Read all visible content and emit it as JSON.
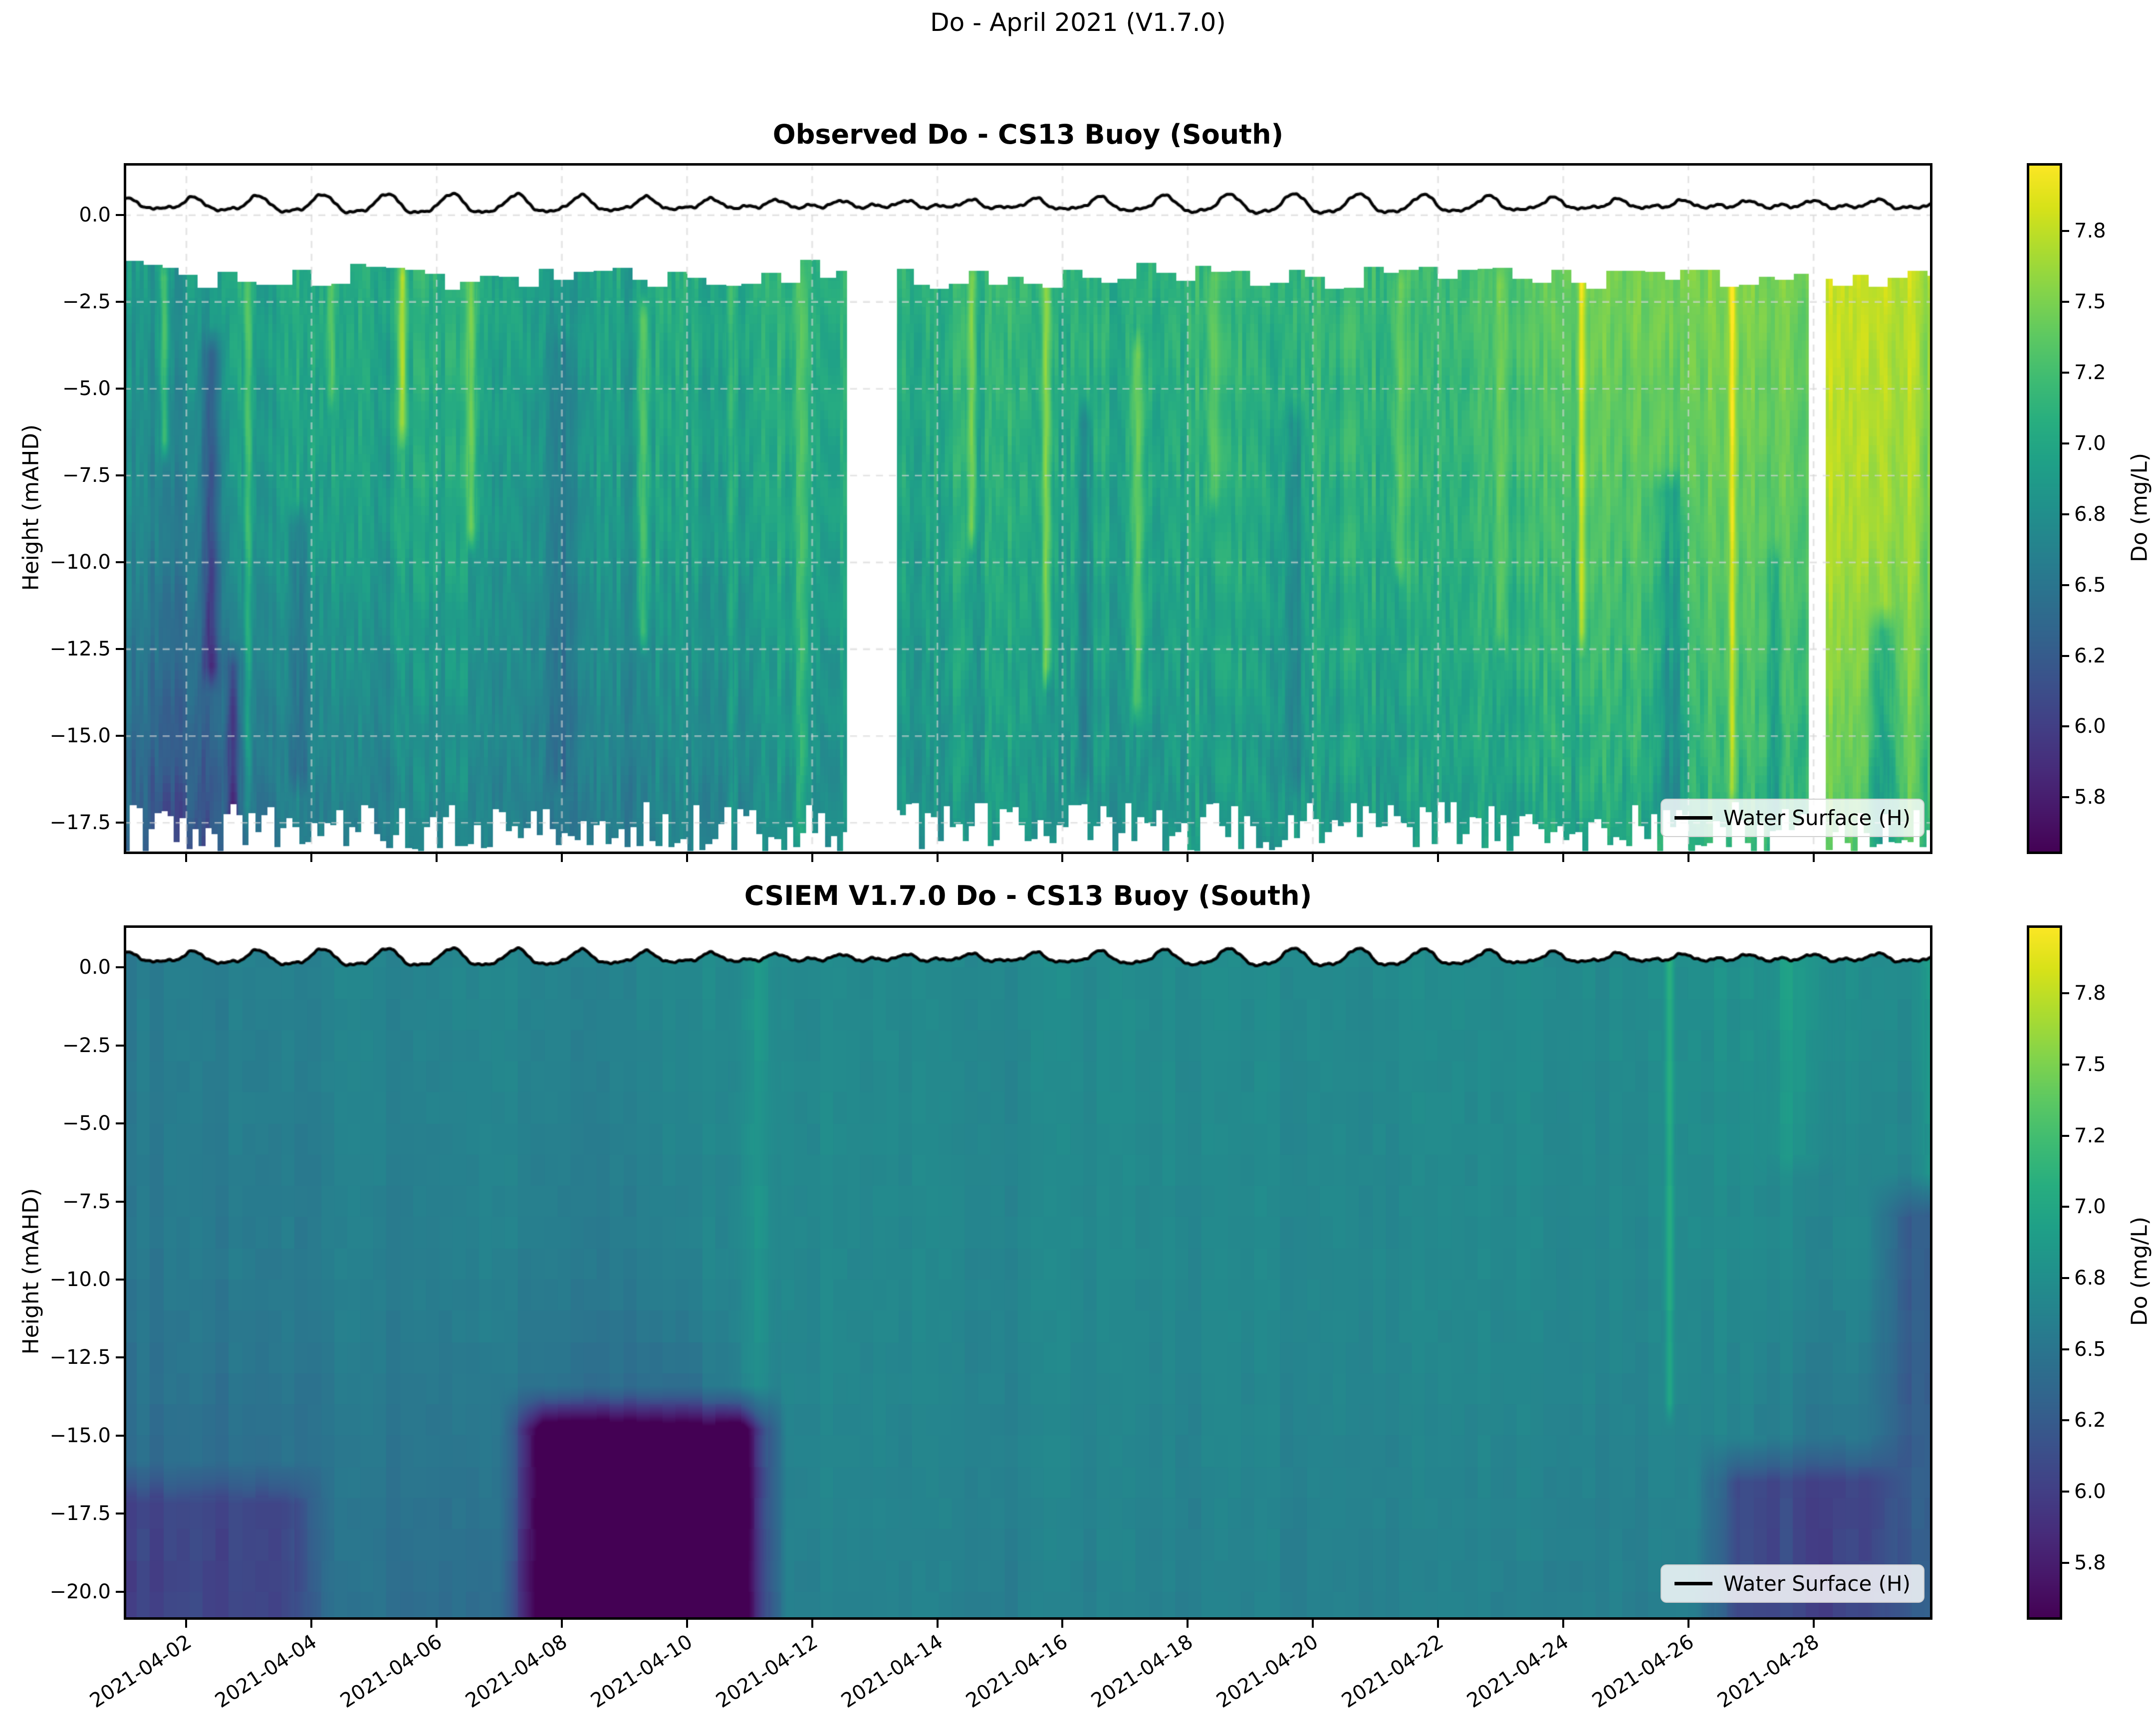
{
  "figure": {
    "suptitle": "Do - April 2021 (V1.7.0)"
  },
  "water_surface": {
    "label": "Water Surface (H)",
    "mean_level_m": 0.3,
    "diurnal_amp_m": 0.27,
    "diurnal_period_days": 1.035,
    "semidiurnal_amp_m": 0.06,
    "semidiurnal_period_days": 0.5175,
    "spring_neap_period_days": 14.2,
    "spring_day": 4.8
  },
  "chart_data": [
    {
      "id": "observed",
      "type": "heatmap",
      "title": "Observed Do - CS13 Buoy (South)",
      "ylabel": "Height (mAHD)",
      "colorbar_label": "Do (mg/L)",
      "legend": "Water Surface (H)",
      "colormap": "viridis",
      "x_start_date": "2021-04-01",
      "x_total_days": 28.9,
      "x_ticks": [
        {
          "day": 1,
          "label": "2021-04-02"
        },
        {
          "day": 3,
          "label": "2021-04-04"
        },
        {
          "day": 5,
          "label": "2021-04-06"
        },
        {
          "day": 7,
          "label": "2021-04-08"
        },
        {
          "day": 9,
          "label": "2021-04-10"
        },
        {
          "day": 11,
          "label": "2021-04-12"
        },
        {
          "day": 13,
          "label": "2021-04-14"
        },
        {
          "day": 15,
          "label": "2021-04-16"
        },
        {
          "day": 17,
          "label": "2021-04-18"
        },
        {
          "day": 19,
          "label": "2021-04-20"
        },
        {
          "day": 21,
          "label": "2021-04-22"
        },
        {
          "day": 23,
          "label": "2021-04-24"
        },
        {
          "day": 25,
          "label": "2021-04-26"
        },
        {
          "day": 27,
          "label": "2021-04-28"
        }
      ],
      "y_ticks": [
        {
          "v": 0.0,
          "label": "0.0"
        },
        {
          "v": -2.5,
          "label": "−2.5"
        },
        {
          "v": -5.0,
          "label": "−5.0"
        },
        {
          "v": -7.5,
          "label": "−7.5"
        },
        {
          "v": -10.0,
          "label": "−10.0"
        },
        {
          "v": -12.5,
          "label": "−12.5"
        },
        {
          "v": -15.0,
          "label": "−15.0"
        },
        {
          "v": -17.5,
          "label": "−17.5"
        }
      ],
      "ylim": [
        -18.4,
        1.5
      ],
      "colorbar_ticks": [
        "7.8",
        "7.5",
        "7.2",
        "7.0",
        "6.8",
        "6.5",
        "6.2",
        "6.0",
        "5.8"
      ],
      "colorbar_tick_values": [
        7.8,
        7.5,
        7.2,
        7.0,
        6.8,
        6.5,
        6.2,
        6.0,
        5.8
      ],
      "data_gaps_days": [
        [
          11.55,
          12.35
        ],
        [
          26.93,
          27.19
        ]
      ],
      "surface_edge": {
        "mean": -1.82,
        "amp": 0.66,
        "step_days": 0.3
      },
      "bottom_edge": {
        "mean": -16.9,
        "amp": 1.5,
        "step_days": 0.1,
        "min": -18.3
      },
      "mid_depth": -9,
      "column_step_days": 0.0625,
      "noise_amp": 0.16,
      "profile_keyframes": [
        [
          0,
          6.95,
          6.8,
          6.4
        ],
        [
          0.7,
          6.85,
          6.6,
          6.1
        ],
        [
          1.4,
          6.9,
          6.6,
          6.15
        ],
        [
          2.2,
          7.0,
          6.9,
          6.55
        ],
        [
          3.2,
          7.0,
          6.9,
          6.6
        ],
        [
          4.3,
          7.05,
          6.95,
          6.65
        ],
        [
          5.4,
          7.05,
          6.95,
          6.7
        ],
        [
          6.4,
          6.95,
          6.8,
          6.6
        ],
        [
          7.4,
          6.9,
          6.8,
          6.55
        ],
        [
          8.4,
          7.0,
          6.9,
          6.6
        ],
        [
          9.5,
          7.05,
          6.95,
          6.7
        ],
        [
          10.6,
          7.1,
          7.0,
          6.8
        ],
        [
          11.5,
          7.1,
          7.0,
          6.8
        ],
        [
          12.4,
          7.05,
          6.95,
          6.8
        ],
        [
          13.4,
          7.1,
          7.0,
          6.85
        ],
        [
          14.5,
          7.15,
          7.05,
          6.9
        ],
        [
          15.5,
          7.05,
          6.95,
          6.8
        ],
        [
          16.5,
          7.1,
          7.0,
          6.85
        ],
        [
          17.6,
          7.15,
          7.05,
          6.9
        ],
        [
          18.7,
          7.1,
          7.0,
          6.85
        ],
        [
          20,
          7.15,
          7.05,
          6.9
        ],
        [
          21.3,
          7.2,
          7.1,
          6.95
        ],
        [
          22.5,
          7.35,
          7.2,
          7.0
        ],
        [
          23.6,
          7.45,
          7.25,
          7.0
        ],
        [
          24.8,
          7.5,
          7.3,
          7.05
        ],
        [
          25.9,
          7.5,
          7.35,
          7.1
        ],
        [
          26.9,
          7.45,
          7.3,
          7.1
        ],
        [
          27.25,
          7.85,
          7.75,
          7.35
        ],
        [
          28.2,
          7.85,
          7.7,
          7.3
        ],
        [
          28.9,
          7.7,
          7.55,
          7.2
        ]
      ],
      "streaks": [
        [
          0.65,
          0.07,
          -1.8,
          -6.5,
          0.45
        ],
        [
          1.4,
          0.12,
          -4,
          -13,
          -0.5
        ],
        [
          1.75,
          0.1,
          -13,
          -18,
          -0.55
        ],
        [
          1.98,
          0.07,
          -1.8,
          -17,
          0.35
        ],
        [
          2.8,
          0.15,
          -9,
          -16,
          -0.3
        ],
        [
          3.3,
          0.06,
          -1.8,
          -5,
          0.3
        ],
        [
          4.45,
          0.06,
          -1.8,
          -6,
          0.6
        ],
        [
          5.55,
          0.07,
          -1.8,
          -9,
          0.5
        ],
        [
          7.0,
          0.2,
          -4,
          -16,
          -0.2
        ],
        [
          8.3,
          0.08,
          -3,
          -12,
          0.35
        ],
        [
          9.7,
          0.06,
          -1.8,
          -18,
          0.25
        ],
        [
          10.8,
          0.12,
          -2,
          -18,
          0.2
        ],
        [
          13.55,
          0.07,
          -1.8,
          -9,
          0.45
        ],
        [
          14.75,
          0.07,
          -1.8,
          -13,
          0.5
        ],
        [
          15.35,
          0.1,
          -6,
          -16,
          -0.3
        ],
        [
          16.2,
          0.1,
          -4,
          -14,
          0.35
        ],
        [
          17.4,
          0.09,
          -1.8,
          -8,
          0.3
        ],
        [
          18.7,
          0.14,
          -6,
          -16,
          -0.25
        ],
        [
          20.4,
          0.09,
          -2,
          -10,
          0.3
        ],
        [
          22.0,
          0.1,
          -2,
          -12,
          0.25
        ],
        [
          23.3,
          0.06,
          -1.8,
          -12,
          0.55
        ],
        [
          24.7,
          0.25,
          -8,
          -17,
          -0.3
        ],
        [
          25.7,
          0.05,
          -1.8,
          -16.5,
          0.65
        ],
        [
          26.4,
          0.1,
          -10,
          -17,
          -0.25
        ],
        [
          28.1,
          0.2,
          -12,
          -18,
          -0.45
        ],
        [
          28.8,
          0.08,
          -2,
          -18,
          -0.15
        ]
      ],
      "blobs": []
    },
    {
      "id": "model",
      "type": "heatmap",
      "title": "CSIEM V1.7.0 Do - CS13 Buoy (South)",
      "ylabel": "Height (mAHD)",
      "colorbar_label": "Do (mg/L)",
      "legend": "Water Surface (H)",
      "colormap": "viridis",
      "x_start_date": "2021-04-01",
      "x_total_days": 28.9,
      "x_ticks": [
        {
          "day": 1,
          "label": "2021-04-02"
        },
        {
          "day": 3,
          "label": "2021-04-04"
        },
        {
          "day": 5,
          "label": "2021-04-06"
        },
        {
          "day": 7,
          "label": "2021-04-08"
        },
        {
          "day": 9,
          "label": "2021-04-10"
        },
        {
          "day": 11,
          "label": "2021-04-12"
        },
        {
          "day": 13,
          "label": "2021-04-14"
        },
        {
          "day": 15,
          "label": "2021-04-16"
        },
        {
          "day": 17,
          "label": "2021-04-18"
        },
        {
          "day": 19,
          "label": "2021-04-20"
        },
        {
          "day": 21,
          "label": "2021-04-22"
        },
        {
          "day": 23,
          "label": "2021-04-24"
        },
        {
          "day": 25,
          "label": "2021-04-26"
        },
        {
          "day": 27,
          "label": "2021-04-28"
        }
      ],
      "y_ticks": [
        {
          "v": 0.0,
          "label": "0.0"
        },
        {
          "v": -2.5,
          "label": "−2.5"
        },
        {
          "v": -5.0,
          "label": "−5.0"
        },
        {
          "v": -7.5,
          "label": "−7.5"
        },
        {
          "v": -10.0,
          "label": "−10.0"
        },
        {
          "v": -12.5,
          "label": "−12.5"
        },
        {
          "v": -15.0,
          "label": "−15.0"
        },
        {
          "v": -17.5,
          "label": "−17.5"
        },
        {
          "v": -20.0,
          "label": "−20.0"
        }
      ],
      "ylim": [
        -20.9,
        1.35
      ],
      "colorbar_ticks": [
        "7.8",
        "7.5",
        "7.2",
        "7.0",
        "6.8",
        "6.5",
        "6.2",
        "6.0",
        "5.8"
      ],
      "colorbar_tick_values": [
        7.8,
        7.5,
        7.2,
        7.0,
        6.8,
        6.5,
        6.2,
        6.0,
        5.8
      ],
      "data_gaps_days": [],
      "mid_depth": -10,
      "column_step_days": 0.21,
      "noise_amp": 0.08,
      "profile_keyframes": [
        [
          0,
          6.6,
          6.55,
          6.3
        ],
        [
          2,
          6.62,
          6.55,
          6.32
        ],
        [
          4,
          6.68,
          6.6,
          6.45
        ],
        [
          6,
          6.66,
          6.58,
          6.35
        ],
        [
          7.5,
          6.68,
          6.58,
          6.15
        ],
        [
          9,
          6.7,
          6.6,
          5.95
        ],
        [
          9.9,
          6.72,
          6.68,
          6.5
        ],
        [
          11,
          6.72,
          6.7,
          6.62
        ],
        [
          14,
          6.74,
          6.7,
          6.63
        ],
        [
          17,
          6.73,
          6.69,
          6.6
        ],
        [
          20,
          6.74,
          6.7,
          6.62
        ],
        [
          23,
          6.76,
          6.72,
          6.62
        ],
        [
          25,
          6.78,
          6.72,
          6.6
        ],
        [
          26.5,
          6.78,
          6.7,
          6.42
        ],
        [
          28,
          6.78,
          6.68,
          6.28
        ],
        [
          28.9,
          6.72,
          6.62,
          6.18
        ]
      ],
      "streaks": [
        [
          10.1,
          0.25,
          0.5,
          -21,
          0.12
        ],
        [
          24.7,
          0.07,
          0.5,
          -14,
          0.28
        ],
        [
          26.8,
          0.5,
          0.5,
          -6,
          0.12
        ],
        [
          28.9,
          0.15,
          0.5,
          -9,
          0.18
        ]
      ],
      "blobs": [
        [
          0,
          2.6,
          -17.2,
          -21,
          6.05
        ],
        [
          6.7,
          9.9,
          -14.8,
          -21,
          5.5
        ],
        [
          25.8,
          29,
          -16.5,
          -21,
          6.05
        ],
        [
          28.55,
          29,
          -8,
          -21,
          6.2
        ]
      ]
    }
  ]
}
